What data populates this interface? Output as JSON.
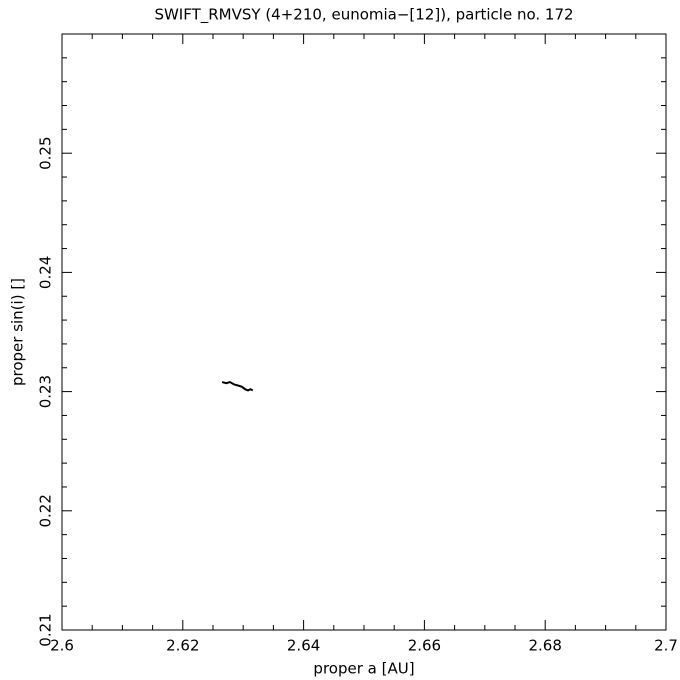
{
  "chart_data": {
    "type": "line",
    "title": "SWIFT_RMVSY (4+210, eunomia−[12]), particle no. 172",
    "x_label": "proper a [AU]",
    "y_label": "proper sin(i) []",
    "x": [
      2.6265,
      2.6272,
      2.6278,
      2.6285,
      2.6292,
      2.6298,
      2.6303,
      2.6308,
      2.6312,
      2.6316
    ],
    "series": [
      {
        "color": "#000000",
        "values": [
          0.2308,
          0.2307,
          0.2308,
          0.2306,
          0.2305,
          0.2304,
          0.2302,
          0.2301,
          0.2302,
          0.2301
        ]
      }
    ],
    "xlim": [
      2.6,
      2.7
    ],
    "ylim": [
      0.21,
      0.26
    ],
    "xticks": [
      2.6,
      2.62,
      2.64,
      2.66,
      2.68,
      2.7
    ],
    "yticks": [
      0.21,
      0.22,
      0.23,
      0.24,
      0.25
    ],
    "xminorticks": [
      2.605,
      2.61,
      2.615,
      2.625,
      2.63,
      2.635,
      2.645,
      2.65,
      2.655,
      2.665,
      2.67,
      2.675,
      2.685,
      2.69,
      2.695
    ],
    "yminorticks": [
      0.212,
      0.214,
      0.216,
      0.218,
      0.222,
      0.224,
      0.226,
      0.228,
      0.232,
      0.234,
      0.236,
      0.238,
      0.242,
      0.244,
      0.246,
      0.248,
      0.252,
      0.254,
      0.256,
      0.258
    ],
    "grid": false
  }
}
